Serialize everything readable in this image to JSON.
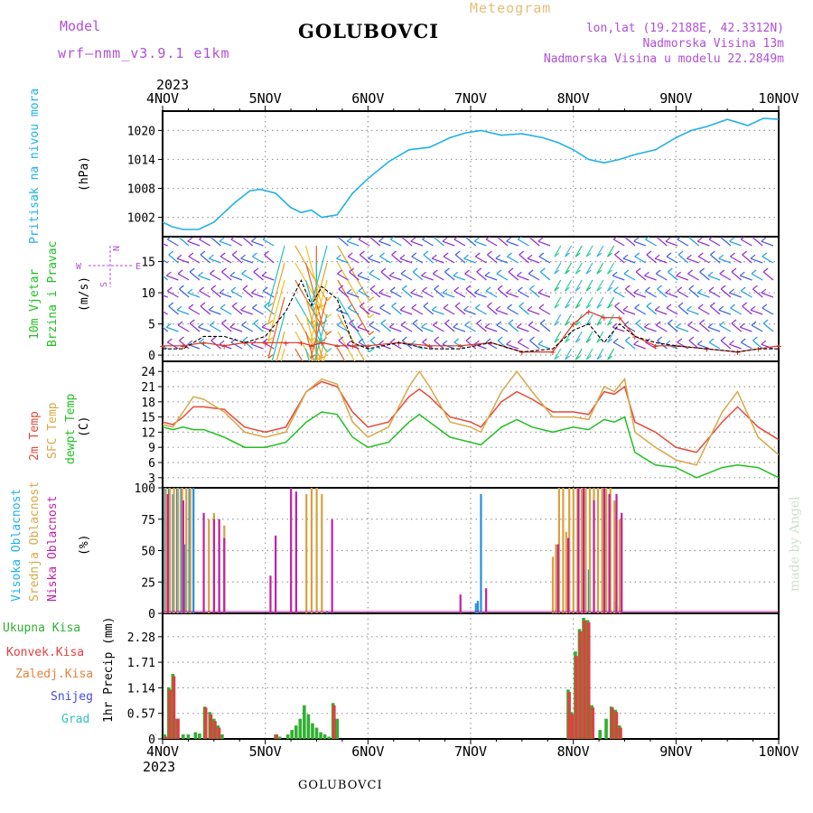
{
  "header": {
    "model_label": "Model",
    "model_name": "wrf—nmm_v3.9.1  e1km",
    "city": "GOLUBOVCI",
    "meteogram": "Meteogram",
    "lonlat": "lon,lat (19.2188E, 42.3312N)",
    "height": "Nadmorska Visina 13m",
    "model_height": "Nadmorska Visina u modelu 22.2849m"
  },
  "footer": {
    "city": "GOLUBOVCI",
    "watermark": "made by Angel"
  },
  "colors": {
    "pressure": "#20b0e8",
    "wind_speed": "#000000",
    "gust": "#e03020",
    "temp2m": "#e84838",
    "sfc_temp": "#d8a848",
    "dewpt": "#20c020",
    "high_cloud": "#2090e0",
    "mid_cloud": "#d8a040",
    "low_cloud": "#c020a0",
    "total_precip": "#30b030",
    "conv_precip": "#e04040"
  },
  "chart_data": [
    {
      "type": "line",
      "name": "pressure",
      "ylabel_colored": "Pritisak na nivou mora",
      "ylabel": "(hPa)",
      "yticks": [
        "1002",
        "1008",
        "1014",
        "1020"
      ],
      "ylim": [
        998,
        1024
      ],
      "x_labels_top": [
        "4NOV",
        "5NOV",
        "6NOV",
        "7NOV",
        "8NOV",
        "9NOV",
        "10NOV"
      ],
      "year": "2023",
      "x": [
        4.0,
        4.1,
        4.2,
        4.35,
        4.5,
        4.7,
        4.85,
        4.95,
        5.1,
        5.25,
        5.35,
        5.45,
        5.55,
        5.7,
        5.85,
        6.0,
        6.2,
        6.4,
        6.6,
        6.8,
        6.95,
        7.1,
        7.3,
        7.5,
        7.7,
        7.85,
        8.0,
        8.15,
        8.3,
        8.45,
        8.6,
        8.8,
        9.0,
        9.15,
        9.3,
        9.5,
        9.7,
        9.85,
        10.0
      ],
      "values": [
        1001,
        1000,
        999.5,
        999.5,
        1001,
        1005,
        1007.5,
        1007.8,
        1007,
        1004,
        1003,
        1003.5,
        1002,
        1002.5,
        1007,
        1010,
        1013.5,
        1016,
        1016.5,
        1018.5,
        1019.5,
        1020,
        1019,
        1019.3,
        1018.5,
        1017.5,
        1016,
        1014,
        1013.3,
        1014,
        1015,
        1016,
        1018.5,
        1020,
        1020.8,
        1022.3,
        1021,
        1022.5,
        1022.3
      ]
    },
    {
      "type": "line",
      "name": "wind",
      "ylabel_colored_1": "10m Vjetar",
      "ylabel_colored_2": "Brzina i Pravac",
      "ylabel": "(m/s)",
      "compass": {
        "n": "N",
        "s": "S",
        "e": "E",
        "w": "W"
      },
      "yticks": [
        "0",
        "5",
        "10",
        "15"
      ],
      "ylim": [
        -1,
        19
      ],
      "x": [
        4.0,
        4.2,
        4.4,
        4.6,
        4.8,
        5.0,
        5.2,
        5.35,
        5.45,
        5.55,
        5.7,
        5.85,
        6.0,
        6.3,
        6.6,
        6.9,
        7.2,
        7.5,
        7.8,
        8.0,
        8.15,
        8.3,
        8.45,
        8.6,
        8.8,
        9.0,
        9.3,
        9.6,
        9.8,
        10.0
      ],
      "values": [
        1,
        1,
        3,
        3,
        2,
        3,
        7,
        12,
        8,
        11,
        9,
        2,
        1,
        2,
        1,
        1,
        2,
        0.5,
        1,
        4,
        5,
        2,
        5,
        3,
        2,
        1.5,
        1,
        0.5,
        1,
        1
      ],
      "gust": [
        1.5,
        1.5,
        2,
        1.5,
        2,
        2,
        2,
        2,
        1.5,
        2,
        1.5,
        1.5,
        1.5,
        2,
        1.5,
        1.5,
        2,
        0.5,
        0.5,
        5,
        7,
        6,
        6,
        3,
        1.5,
        1.5,
        1,
        0.5,
        1,
        1.5
      ]
    },
    {
      "type": "line",
      "name": "temperature",
      "ylabel_colored_1": "2m Temp",
      "ylabel_colored_2": "SFC Temp",
      "ylabel_colored_3": "dewpt Temp",
      "ylabel": "(C)",
      "yticks": [
        "3",
        "6",
        "9",
        "12",
        "15",
        "18",
        "21",
        "24"
      ],
      "ylim": [
        1,
        26
      ],
      "series": [
        {
          "name": "2m Temp",
          "x": [
            4.0,
            4.1,
            4.2,
            4.3,
            4.4,
            4.6,
            4.8,
            5.0,
            5.2,
            5.4,
            5.55,
            5.7,
            5.85,
            6.0,
            6.2,
            6.4,
            6.5,
            6.6,
            6.8,
            7.0,
            7.1,
            7.3,
            7.45,
            7.6,
            7.8,
            8.0,
            8.15,
            8.3,
            8.4,
            8.5,
            8.6,
            8.8,
            9.0,
            9.2,
            9.45,
            9.6,
            9.8,
            10.0
          ],
          "values": [
            14,
            13.5,
            15,
            17,
            17,
            16.5,
            13,
            12,
            13,
            20,
            22,
            21,
            16,
            13,
            14,
            19,
            20.5,
            19,
            15,
            14,
            13,
            18,
            20,
            18.5,
            16,
            16,
            15.5,
            20,
            19.5,
            21,
            14,
            12,
            9,
            8,
            14,
            17,
            13,
            10.5
          ]
        },
        {
          "name": "SFC Temp",
          "x": [
            4.0,
            4.1,
            4.2,
            4.3,
            4.4,
            4.6,
            4.8,
            5.0,
            5.2,
            5.4,
            5.55,
            5.7,
            5.85,
            6.0,
            6.2,
            6.4,
            6.5,
            6.6,
            6.8,
            7.0,
            7.1,
            7.3,
            7.45,
            7.6,
            7.8,
            8.0,
            8.15,
            8.3,
            8.4,
            8.5,
            8.6,
            8.8,
            9.0,
            9.2,
            9.45,
            9.6,
            9.8,
            10.0
          ],
          "values": [
            13.5,
            13,
            16,
            19,
            18.5,
            16,
            12,
            11,
            12,
            20,
            22.5,
            21.5,
            14,
            11,
            13,
            21,
            24,
            21,
            14,
            13,
            12,
            20,
            24,
            20,
            15,
            15,
            14.5,
            21,
            20,
            22.5,
            12,
            9,
            6.5,
            5.5,
            16,
            20,
            11,
            7.5
          ]
        },
        {
          "name": "dewpt Temp",
          "x": [
            4.0,
            4.1,
            4.2,
            4.3,
            4.4,
            4.6,
            4.8,
            5.0,
            5.2,
            5.4,
            5.55,
            5.7,
            5.85,
            6.0,
            6.2,
            6.4,
            6.5,
            6.6,
            6.8,
            7.0,
            7.1,
            7.3,
            7.45,
            7.6,
            7.8,
            8.0,
            8.15,
            8.3,
            8.4,
            8.5,
            8.6,
            8.8,
            9.0,
            9.2,
            9.45,
            9.6,
            9.8,
            10.0
          ],
          "values": [
            13,
            12.5,
            13,
            12.5,
            12.5,
            11,
            9,
            9,
            10,
            14,
            16,
            15.5,
            11,
            9,
            10,
            14,
            15.5,
            14,
            11,
            10,
            9.5,
            13,
            14.5,
            13,
            12,
            13,
            12.5,
            14.5,
            14,
            15,
            8,
            5.5,
            5,
            3,
            5,
            5.5,
            5,
            3
          ]
        }
      ]
    },
    {
      "type": "bar",
      "name": "clouds",
      "ylabel_colored_1": "Visoka Oblacnost",
      "ylabel_colored_2": "Srednja Oblacnost",
      "ylabel_colored_3": "Niska Oblacnost",
      "ylabel": "(%)",
      "yticks": [
        "0",
        "25",
        "50",
        "75",
        "100"
      ],
      "ylim": [
        0,
        100
      ],
      "series": [
        {
          "name": "Visoka Oblacnost",
          "x": [
            4.02,
            4.06,
            4.1,
            4.14,
            4.18,
            4.22,
            4.26,
            4.3,
            5.6,
            7.05,
            7.07,
            7.1,
            8.1,
            8.15,
            8.4,
            8.45
          ],
          "values": [
            100,
            100,
            95,
            100,
            100,
            55,
            100,
            100,
            2,
            8,
            10,
            95,
            35,
            35,
            10,
            6
          ]
        },
        {
          "name": "Srednja Oblacnost",
          "x": [
            4.03,
            4.07,
            4.11,
            4.15,
            4.19,
            4.23,
            4.27,
            4.45,
            4.5,
            4.55,
            4.6,
            5.4,
            5.45,
            5.5,
            5.55,
            7.8,
            7.83,
            7.86,
            7.9,
            7.93,
            7.96,
            8.0,
            8.04,
            8.08,
            8.12,
            8.16,
            8.2,
            8.24,
            8.28,
            8.32,
            8.36,
            8.4,
            8.45
          ],
          "values": [
            100,
            100,
            100,
            100,
            100,
            100,
            100,
            75,
            80,
            75,
            70,
            95,
            100,
            100,
            95,
            45,
            55,
            100,
            100,
            65,
            100,
            100,
            100,
            100,
            100,
            100,
            100,
            100,
            100,
            100,
            100,
            90,
            75
          ]
        },
        {
          "name": "Niska Oblacnost",
          "x": [
            4.05,
            4.2,
            4.4,
            4.5,
            4.55,
            4.6,
            5.05,
            5.1,
            5.25,
            5.3,
            5.65,
            6.9,
            7.15,
            7.85,
            7.95,
            8.05,
            8.1,
            8.2,
            8.3,
            8.35,
            8.42,
            8.47
          ],
          "values": [
            95,
            90,
            80,
            75,
            75,
            60,
            30,
            62,
            100,
            97,
            75,
            15,
            20,
            55,
            60,
            100,
            100,
            90,
            100,
            95,
            95,
            80
          ]
        }
      ]
    },
    {
      "type": "bar",
      "name": "precipitation",
      "legend": [
        "Ukupna Kisa",
        "Konvek.Kisa",
        "Zaledj.Kisa",
        "Snijeg",
        "Grad"
      ],
      "ylabel": "1hr Precip (mm)",
      "yticks": [
        "0",
        "0.57",
        "1.14",
        "1.71",
        "2.28"
      ],
      "ylim": [
        0,
        2.8
      ],
      "x_labels_bottom": [
        "4NOV",
        "5NOV",
        "6NOV",
        "7NOV",
        "8NOV",
        "9NOV",
        "10NOV"
      ],
      "year_bottom": "2023",
      "series": [
        {
          "name": "Ukupna Kisa",
          "x": [
            4.02,
            4.06,
            4.1,
            4.14,
            4.2,
            4.25,
            4.32,
            4.36,
            4.41,
            4.46,
            4.5,
            4.54,
            4.58,
            5.1,
            5.14,
            5.22,
            5.26,
            5.3,
            5.34,
            5.38,
            5.42,
            5.46,
            5.5,
            5.54,
            5.58,
            5.62,
            5.66,
            5.7,
            7.95,
            7.98,
            8.02,
            8.06,
            8.1,
            8.14,
            8.18,
            8.26,
            8.32,
            8.37,
            8.41,
            8.45
          ],
          "values": [
            0.1,
            1.15,
            1.45,
            0.45,
            0.1,
            0.1,
            0.15,
            0.12,
            0.72,
            0.6,
            0.45,
            0.3,
            0.1,
            0.1,
            0.05,
            0.1,
            0.2,
            0.3,
            0.45,
            0.75,
            0.55,
            0.35,
            0.25,
            0.15,
            0.1,
            0.05,
            0.8,
            0.45,
            1.1,
            0.6,
            1.95,
            2.45,
            2.7,
            2.65,
            0.75,
            0.2,
            0.45,
            0.72,
            0.65,
            0.3
          ]
        },
        {
          "name": "Konvek.Kisa",
          "x": [
            4.03,
            4.07,
            4.11,
            4.15,
            4.42,
            4.47,
            4.51,
            4.55,
            5.11,
            5.67,
            7.96,
            7.99,
            8.03,
            8.07,
            8.11,
            8.15,
            8.19,
            8.38,
            8.42,
            8.46
          ],
          "values": [
            0.05,
            1.1,
            1.4,
            0.45,
            0.7,
            0.55,
            0.4,
            0.25,
            0.1,
            0.75,
            1.05,
            0.55,
            1.85,
            2.4,
            2.65,
            2.6,
            0.7,
            0.7,
            0.6,
            0.25
          ]
        }
      ]
    }
  ]
}
